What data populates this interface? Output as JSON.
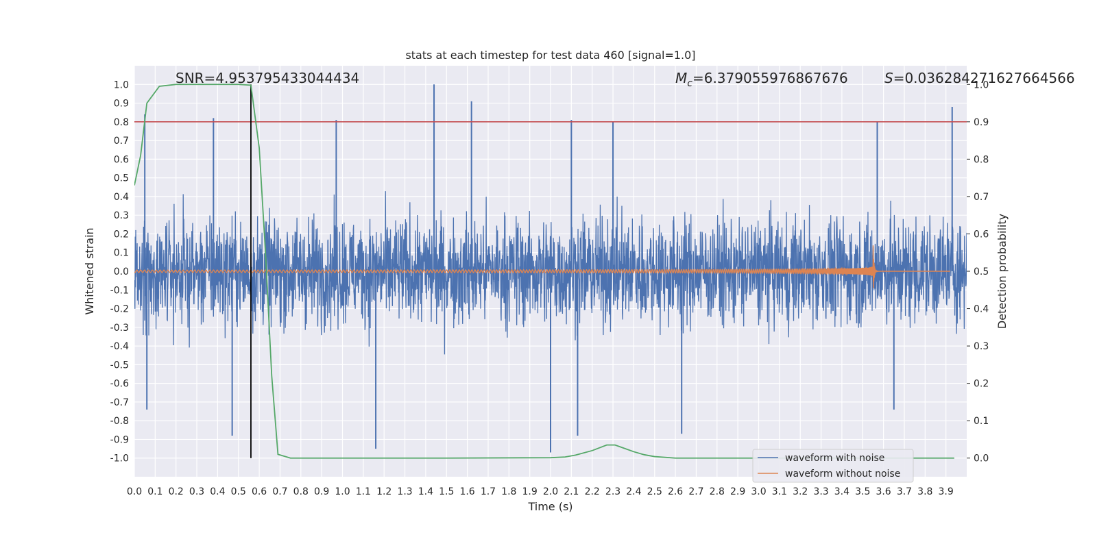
{
  "chart_data": {
    "type": "line",
    "title": "stats at each timestep for test data 460 [signal=1.0]",
    "xlabel": "Time (s)",
    "ylabel": "Whitened strain",
    "y2label": "Detection probability",
    "xlim": [
      0.0,
      4.0
    ],
    "ylim": [
      -1.1,
      1.1
    ],
    "y2lim": [
      -0.05,
      1.05
    ],
    "xticks": [
      0.0,
      0.1,
      0.2,
      0.3,
      0.4,
      0.5,
      0.6,
      0.7,
      0.8,
      0.9,
      1.0,
      1.1,
      1.2,
      1.3,
      1.4,
      1.5,
      1.6,
      1.7,
      1.8,
      1.9,
      2.0,
      2.1,
      2.2,
      2.3,
      2.4,
      2.5,
      2.6,
      2.7,
      2.8,
      2.9,
      3.0,
      3.1,
      3.2,
      3.3,
      3.4,
      3.5,
      3.6,
      3.7,
      3.8,
      3.9
    ],
    "yticks": [
      1.0,
      0.9,
      0.8,
      0.7,
      0.6,
      0.5,
      0.4,
      0.3,
      0.2,
      0.1,
      0.0,
      -0.1,
      -0.2,
      -0.3,
      -0.4,
      -0.5,
      -0.6,
      -0.7,
      -0.8,
      -0.9,
      -1.0
    ],
    "y2ticks": [
      1.0,
      0.9,
      0.8,
      0.7,
      0.6,
      0.5,
      0.4,
      0.3,
      0.2,
      0.1,
      0.0
    ],
    "grid": true,
    "legend_position": "bottom-right",
    "annotations": {
      "snr": "SNR=4.953795433044434",
      "mc_symbol": "M",
      "mc_sub": "c",
      "mc_value": "=6.379055976867676",
      "s_symbol": "S",
      "s_value": "=0.036284271627664566"
    },
    "threshold": {
      "axis": "right",
      "value": 0.9,
      "color": "#c44e52"
    },
    "vline": {
      "x": 0.56,
      "ymin": -1.0,
      "ymax": 1.0,
      "color": "#000000"
    },
    "series": [
      {
        "name": "waveform with noise",
        "axis": "left",
        "color": "#4c72b0",
        "description": "dense whitened-noise trace spanning roughly -0.95 to 1.0 over 0-4 s",
        "noise_amplitude": 0.45,
        "peaks": [
          [
            0.05,
            0.84
          ],
          [
            0.38,
            0.82
          ],
          [
            0.97,
            0.81
          ],
          [
            1.44,
            1.0
          ],
          [
            1.62,
            0.91
          ],
          [
            2.1,
            0.81
          ],
          [
            2.3,
            0.8
          ],
          [
            3.57,
            0.8
          ],
          [
            3.93,
            0.88
          ],
          [
            1.16,
            -0.95
          ],
          [
            2.0,
            -0.97
          ],
          [
            0.47,
            -0.88
          ],
          [
            2.63,
            -0.87
          ],
          [
            3.65,
            -0.74
          ],
          [
            0.06,
            -0.74
          ],
          [
            2.13,
            -0.88
          ]
        ]
      },
      {
        "name": "waveform without noise",
        "axis": "left",
        "color": "#dd8452",
        "description": "chirp signal with growing amplitude and frequency, merging near 3.55 s",
        "chirp": {
          "t_start": 0.0,
          "t_merge": 3.55,
          "t_end": 3.92,
          "amp_start": 0.012,
          "amp_peak": 0.17
        }
      },
      {
        "name": "detection probability",
        "axis": "right",
        "color": "#55a868",
        "x": [
          0.0,
          0.03,
          0.06,
          0.12,
          0.2,
          0.3,
          0.4,
          0.5,
          0.56,
          0.6,
          0.63,
          0.66,
          0.69,
          0.75,
          0.8,
          1.0,
          1.5,
          2.0,
          2.07,
          2.12,
          2.2,
          2.27,
          2.31,
          2.35,
          2.4,
          2.45,
          2.5,
          2.6,
          2.8,
          3.0,
          3.5,
          3.94
        ],
        "y": [
          0.73,
          0.81,
          0.95,
          0.995,
          1.0,
          1.0,
          1.0,
          1.0,
          0.998,
          0.83,
          0.55,
          0.22,
          0.01,
          0.0,
          0.0,
          0.0,
          0.0,
          0.001,
          0.003,
          0.008,
          0.02,
          0.035,
          0.035,
          0.027,
          0.017,
          0.009,
          0.004,
          0.0,
          0.0,
          0.0,
          0.0,
          0.0
        ]
      }
    ],
    "legend": [
      "waveform with noise",
      "waveform without noise"
    ]
  }
}
